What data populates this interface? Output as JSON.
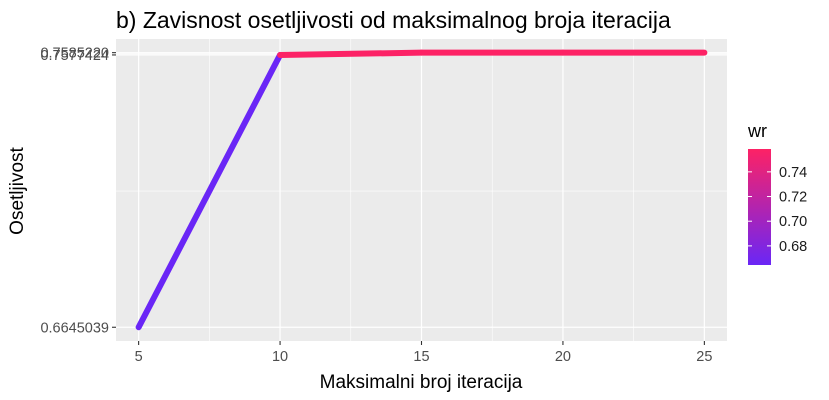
{
  "chart_data": {
    "type": "line",
    "title": "b) Zavisnost osetljivosti od maksimalnog broja iteracija",
    "xlabel": "Maksimalni broj iteracija",
    "ylabel": "Osetljivost",
    "x": [
      5,
      10,
      15,
      20,
      25
    ],
    "series": [
      {
        "values": [
          0.6645039,
          0.7577424,
          0.758522,
          0.758522,
          0.758522
        ]
      }
    ],
    "color_variable": "wr",
    "xlim": [
      4.2,
      25.8
    ],
    "ylim": [
      0.6598,
      0.7632
    ],
    "x_ticks": [
      5,
      10,
      15,
      20,
      25
    ],
    "x_tick_labels": [
      "5",
      "10",
      "15",
      "20",
      "25"
    ],
    "y_ticks": [
      0.6645039,
      0.7577424,
      0.758522
    ],
    "y_tick_labels": [
      "0.6645039",
      "0.7577424",
      "0.7585220"
    ],
    "legend": {
      "title": "wr",
      "placement": "right",
      "ticks": [
        0.68,
        0.7,
        0.72,
        0.74
      ],
      "tick_labels": [
        "0.68",
        "0.70",
        "0.72",
        "0.74"
      ],
      "range": [
        0.6645039,
        0.758522
      ],
      "low_color": "#6a26f6",
      "high_color": "#fd2265"
    },
    "panel_background": "#ebebeb",
    "grid": true
  }
}
